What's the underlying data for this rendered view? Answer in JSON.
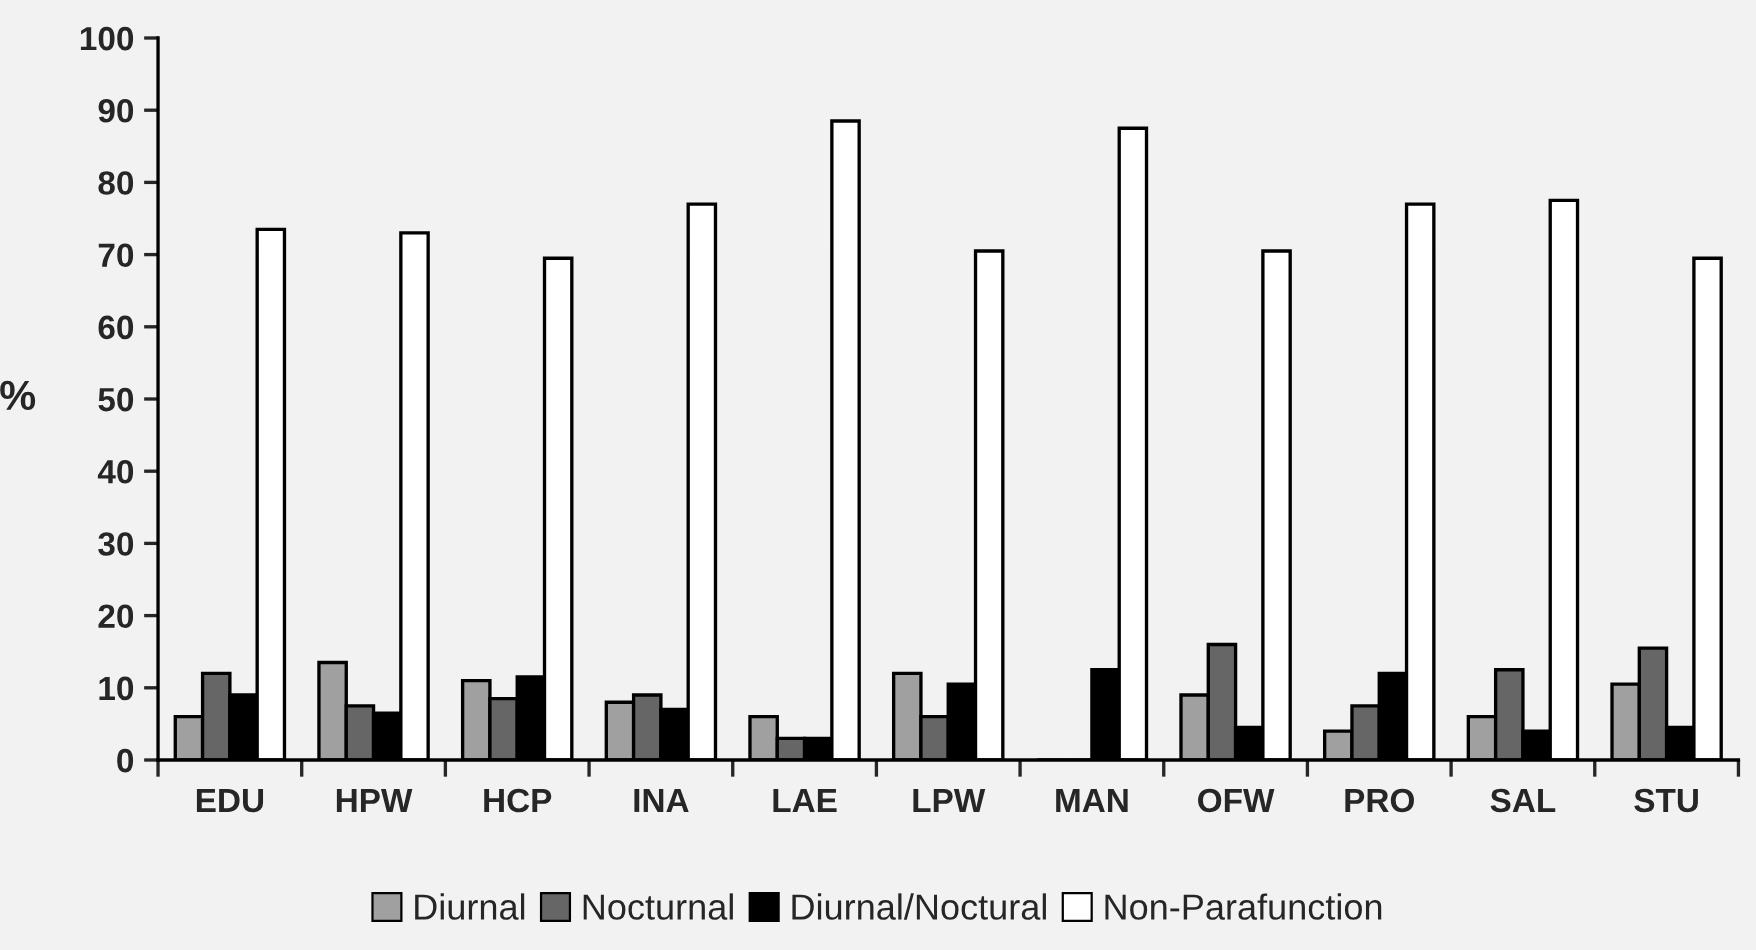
{
  "chart_data": {
    "type": "bar",
    "ylabel": "%",
    "categories": [
      "EDU",
      "HPW",
      "HCP",
      "INA",
      "LAE",
      "LPW",
      "MAN",
      "OFW",
      "PRO",
      "SAL",
      "STU"
    ],
    "series": [
      {
        "name": "Diurnal",
        "color": "#a0a0a0",
        "values": [
          6,
          13.5,
          11,
          8,
          6,
          12,
          0,
          9,
          4,
          6,
          10.5
        ]
      },
      {
        "name": "Nocturnal",
        "color": "#666666",
        "values": [
          12,
          7.5,
          8.5,
          9,
          3,
          6,
          0,
          16,
          7.5,
          12.5,
          15.5
        ]
      },
      {
        "name": "Diurnal/Noctural",
        "color": "#000000",
        "values": [
          9,
          6.5,
          11.5,
          7,
          3,
          10.5,
          12.5,
          4.5,
          12,
          4,
          4.5
        ]
      },
      {
        "name": "Non-Parafunction",
        "color": "#ffffff",
        "values": [
          73.5,
          73,
          69.5,
          77,
          88.5,
          70.5,
          87.5,
          70.5,
          77,
          77.5,
          69.5
        ]
      }
    ],
    "ylim": [
      0,
      100
    ],
    "yticks": [
      0,
      10,
      20,
      30,
      40,
      50,
      60,
      70,
      80,
      90,
      100
    ],
    "grid": false,
    "legend": "bottom"
  }
}
